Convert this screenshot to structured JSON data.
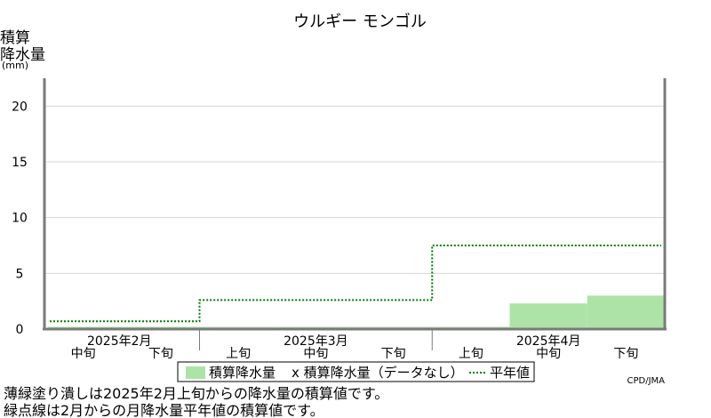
{
  "chart_data": {
    "type": "area",
    "title": "ウルギー モンゴル",
    "ylabel_lines": [
      "積算",
      "降水量",
      "(mm)"
    ],
    "ylim": [
      0,
      22.5
    ],
    "yticks": [
      0,
      5,
      10,
      15,
      20
    ],
    "grid": true,
    "periods": [
      "2月中旬",
      "2月下旬",
      "3月上旬",
      "3月中旬",
      "3月下旬",
      "4月上旬",
      "4月中旬",
      "4月下旬"
    ],
    "period_labels": [
      "中旬",
      "下旬",
      "上旬",
      "中旬",
      "下旬",
      "上旬",
      "中旬",
      "下旬"
    ],
    "month_labels": [
      {
        "label": "2025年2月",
        "start": 0,
        "span": 2
      },
      {
        "label": "2025年3月",
        "start": 2,
        "span": 3
      },
      {
        "label": "2025年4月",
        "start": 5,
        "span": 3
      }
    ],
    "series": [
      {
        "name": "積算降水量",
        "kind": "area",
        "color": "#aee3a8",
        "values": [
          0.2,
          0.2,
          0.2,
          0.2,
          0.2,
          0.2,
          2.3,
          3.0
        ]
      },
      {
        "name": "平年値",
        "kind": "step-dotted",
        "color": "#007a00",
        "values": [
          0.7,
          0.7,
          2.6,
          2.6,
          2.6,
          7.5,
          7.5,
          7.5
        ]
      }
    ],
    "legend": {
      "position": "bottom",
      "items": [
        "積算降水量",
        "x 積算降水量（データなし）",
        "平年値"
      ]
    },
    "source": "CPD/JMA"
  },
  "notes": [
    "薄緑塗り潰しは2025年2月上旬からの降水量の積算値です。",
    "緑点線は2月からの月降水量平年値の積算値です。"
  ]
}
